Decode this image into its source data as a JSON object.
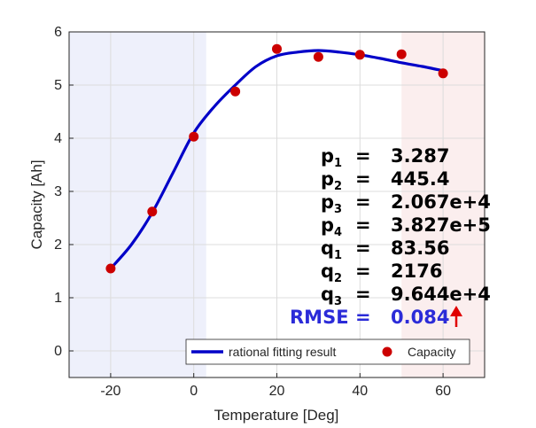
{
  "chart_data": {
    "type": "line",
    "xlabel": "Temperature [Deg]",
    "ylabel": "Capacity [Ah]",
    "xlim": [
      -30,
      70
    ],
    "ylim": [
      -0.5,
      6
    ],
    "x_ticks": [
      -20,
      0,
      20,
      40,
      60
    ],
    "y_ticks": [
      0,
      1,
      2,
      3,
      4,
      5,
      6
    ],
    "grid": true,
    "shaded_regions": [
      {
        "x": [
          -30,
          3
        ],
        "color": "#eef0fb"
      },
      {
        "x": [
          50,
          70
        ],
        "color": "#fbeeee"
      }
    ],
    "series": [
      {
        "name": "rational fitting result",
        "kind": "line",
        "color": "#0000c8",
        "x": [
          -20,
          -15,
          -10,
          -5,
          0,
          5,
          10,
          15,
          20,
          25,
          30,
          35,
          40,
          45,
          50,
          55,
          60
        ],
        "y": [
          1.55,
          2.0,
          2.6,
          3.35,
          4.1,
          4.6,
          5.0,
          5.35,
          5.55,
          5.62,
          5.65,
          5.62,
          5.57,
          5.5,
          5.42,
          5.35,
          5.27
        ]
      },
      {
        "name": "Capacity",
        "kind": "scatter",
        "color": "#cc0000",
        "x": [
          -20,
          -10,
          0,
          10,
          20,
          30,
          40,
          50,
          60
        ],
        "y": [
          1.55,
          2.62,
          4.03,
          4.88,
          5.68,
          5.53,
          5.57,
          5.58,
          5.22
        ]
      }
    ],
    "legend_position": "bottom-right",
    "annotations": {
      "params": [
        {
          "base": "p",
          "sub": "1",
          "eq": "=",
          "value": "3.287"
        },
        {
          "base": "p",
          "sub": "2",
          "eq": "=",
          "value": "445.4"
        },
        {
          "base": "p",
          "sub": "3",
          "eq": "=",
          "value": "2.067e+4"
        },
        {
          "base": "p",
          "sub": "4",
          "eq": "=",
          "value": "3.827e+5"
        },
        {
          "base": "q",
          "sub": "1",
          "eq": "=",
          "value": "83.56"
        },
        {
          "base": "q",
          "sub": "2",
          "eq": "=",
          "value": "2176"
        },
        {
          "base": "q",
          "sub": "3",
          "eq": "=",
          "value": "9.644e+4"
        }
      ],
      "rmse": {
        "label": "RMSE",
        "eq": "=",
        "value": "0.084"
      },
      "arrow_icon": "up-arrow-icon",
      "arrow_color": "#e00000"
    }
  }
}
